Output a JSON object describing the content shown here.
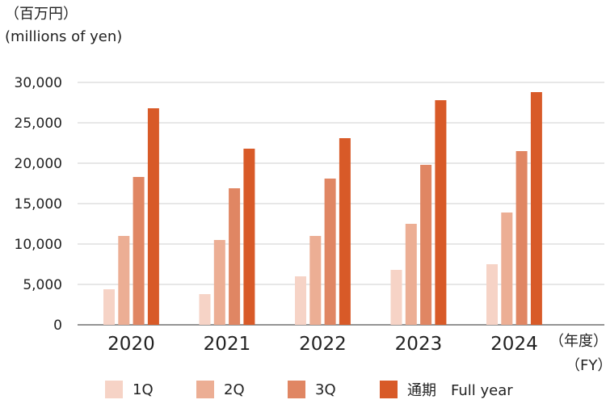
{
  "header": {
    "unit_ja": "（百万円）",
    "unit_en": "(millions of yen)"
  },
  "axis": {
    "fy_ja": "（年度）",
    "fy_en": "（FY）"
  },
  "chart_data": {
    "type": "bar",
    "categories": [
      "2020",
      "2021",
      "2022",
      "2023",
      "2024"
    ],
    "series": [
      {
        "name": "1Q",
        "color": "#f6d3c6",
        "values": [
          4400,
          3800,
          6000,
          6800,
          7500
        ]
      },
      {
        "name": "2Q",
        "color": "#ecae94",
        "values": [
          11000,
          10500,
          11000,
          12500,
          13900
        ]
      },
      {
        "name": "3Q",
        "color": "#e08663",
        "values": [
          18300,
          16900,
          18100,
          19800,
          21500
        ]
      },
      {
        "name": "通期　Full year",
        "color": "#d85a28",
        "values": [
          26800,
          21800,
          23100,
          27800,
          28800
        ]
      }
    ],
    "yticks": [
      "0",
      "5,000",
      "10,000",
      "15,000",
      "20,000",
      "25,000",
      "30,000"
    ],
    "ylim": [
      0,
      30000
    ],
    "grid": true,
    "legend_position": "bottom"
  }
}
